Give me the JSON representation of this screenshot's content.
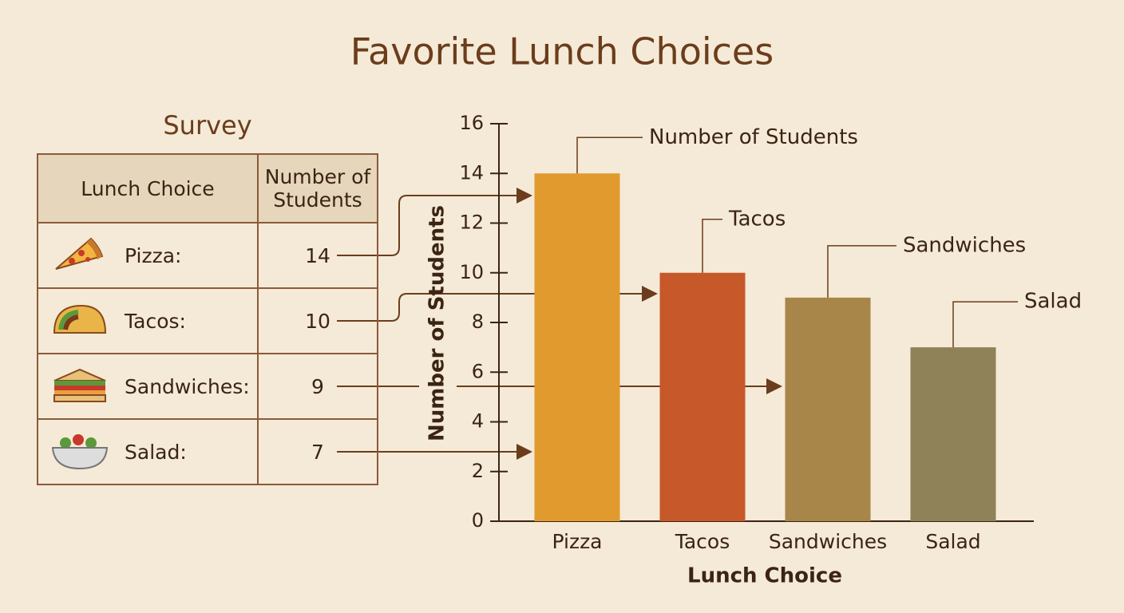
{
  "table": {
    "title": "Survey",
    "columns": [
      "Lunch Choice",
      "Number of Students"
    ],
    "rows": [
      "Pizza:",
      "Tacos:",
      "Sandwiches:",
      "Salad:"
    ]
  },
  "chart_data": {
    "type": "bar",
    "title": "Favorite Lunch Choices",
    "categories": [
      "Pizza",
      "Tacos",
      "Sandwiches",
      "Salad"
    ],
    "values": [
      14,
      10,
      9,
      7
    ],
    "colors": [
      "#e19a2e",
      "#c6582a",
      "#a88548",
      "#8f8158"
    ],
    "bar_callouts": [
      "Number of Students",
      "Tacos",
      "Sandwiches",
      "Salad"
    ],
    "x_label": "Lunch Choice",
    "y_label": "Number of Students",
    "ylim": [
      0,
      16
    ],
    "yticks": [
      0,
      2,
      4,
      6,
      8,
      10,
      12,
      14,
      16
    ]
  }
}
